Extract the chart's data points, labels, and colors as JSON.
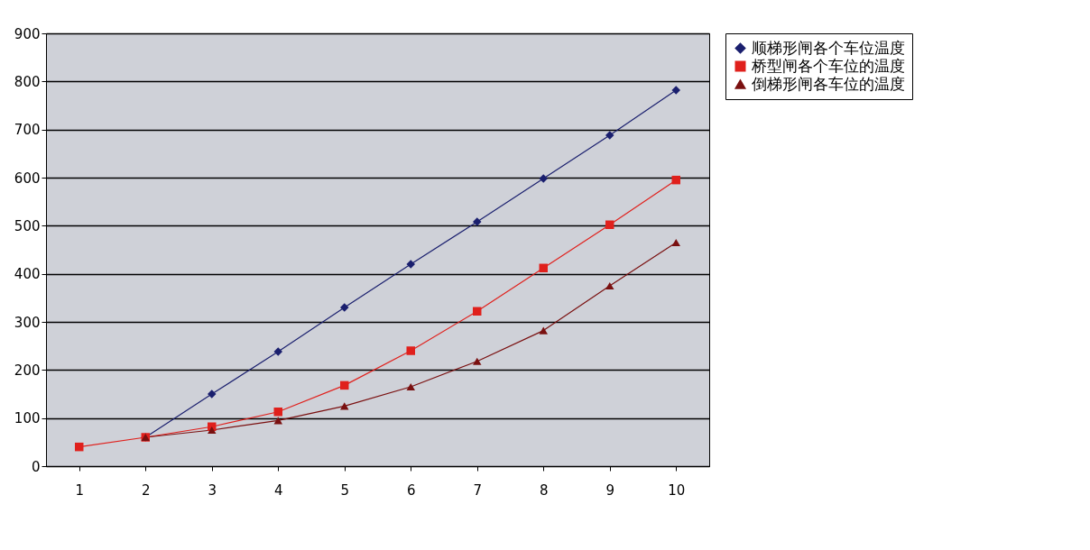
{
  "chart_data": {
    "type": "line",
    "categories": [
      "1",
      "2",
      "3",
      "4",
      "5",
      "6",
      "7",
      "8",
      "9",
      "10"
    ],
    "series": [
      {
        "name": "顺梯形闸各个车位温度",
        "color": "#1a1f6e",
        "marker": "diamond",
        "values": [
          null,
          60,
          150,
          238,
          330,
          420,
          508,
          598,
          688,
          782
        ]
      },
      {
        "name": "桥型闸各个车位的温度",
        "color": "#e0201c",
        "marker": "square",
        "values": [
          40,
          60,
          82,
          113,
          168,
          240,
          322,
          412,
          502,
          595
        ]
      },
      {
        "name": "倒梯形闸各车位的温度",
        "color": "#7a1010",
        "marker": "triangle",
        "values": [
          null,
          60,
          75,
          95,
          125,
          165,
          218,
          282,
          375,
          465
        ]
      }
    ],
    "ylim": [
      0,
      900
    ],
    "yticks": [
      0,
      100,
      200,
      300,
      400,
      500,
      600,
      700,
      800,
      900
    ],
    "grid": "y",
    "legend": "right",
    "line_style": "solid"
  }
}
